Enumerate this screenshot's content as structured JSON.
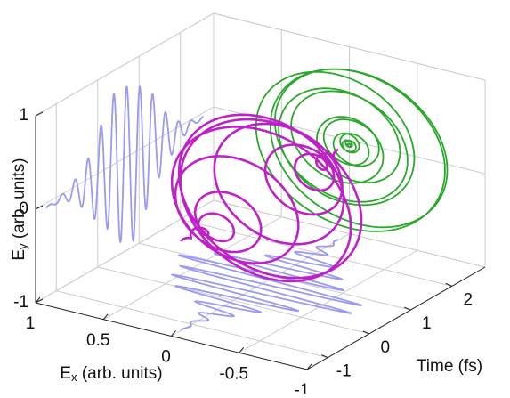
{
  "chart_data": {
    "type": "trajectory3d",
    "zlabel": {
      "symbol": "E",
      "subscript": "y",
      "unit": " (arb. units)"
    },
    "xlabel": {
      "symbol": "E",
      "subscript": "x",
      "unit": " (arb. units)"
    },
    "ylabel": "Time (fs)",
    "zlim": [
      -1,
      1
    ],
    "zticks": [
      -1,
      0,
      1
    ],
    "xlim": [
      1,
      -1
    ],
    "xticks": [
      1,
      0.5,
      0,
      -0.5,
      -1
    ],
    "ylim": [
      -1.5,
      2.8
    ],
    "yticks": [
      -1,
      0,
      1,
      2
    ],
    "grid": true,
    "colors": {
      "trajectory": "#c020c8",
      "back_projection": "#2aa82a",
      "side_projection": "#9a9af0"
    }
  }
}
